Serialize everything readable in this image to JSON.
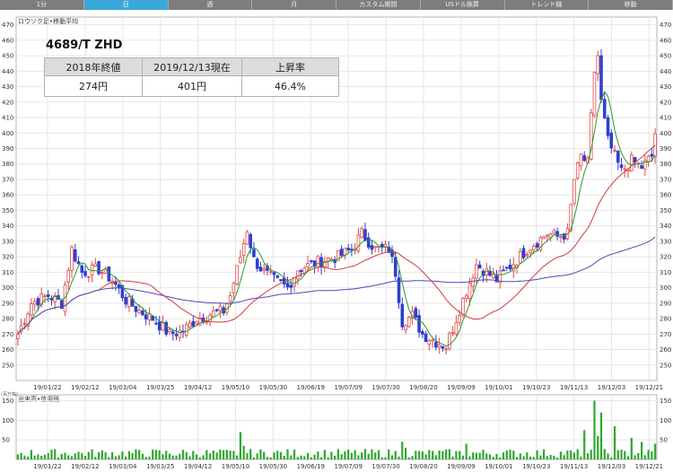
{
  "toolbar": {
    "tabs": [
      {
        "label": "1分",
        "active": false
      },
      {
        "label": "日",
        "active": true
      },
      {
        "label": "週",
        "active": false
      },
      {
        "label": "月",
        "active": false
      },
      {
        "label": "カスタム期間",
        "active": false
      },
      {
        "label": "USドル換算",
        "active": false
      },
      {
        "label": "トレンド線",
        "active": false
      },
      {
        "label": "移動",
        "active": false
      }
    ],
    "active_color": "#39a8d8",
    "bar_color": "#7d7d7d"
  },
  "info": {
    "title": "4689/T ZHD",
    "headers": [
      "2018年終値",
      "2019/12/13現在",
      "上昇率"
    ],
    "values": [
      "274円",
      "401円",
      "46.4%"
    ]
  },
  "chart_data": {
    "type": "candlestick",
    "price_panel_label": "ロウソク足•移動平均",
    "volume_panel_label": "出来高•信用残",
    "volume_unit_label": "(百万株)",
    "price_ylim": [
      240,
      475
    ],
    "price_yticks": [
      250,
      260,
      270,
      280,
      290,
      300,
      310,
      320,
      330,
      340,
      350,
      360,
      370,
      380,
      390,
      400,
      410,
      420,
      430,
      440,
      450,
      460,
      470
    ],
    "price_ytick_labels": [
      "250",
      "260",
      "270",
      "280",
      "290",
      "300",
      "310",
      "320",
      "330",
      "340",
      "350",
      "360",
      "370",
      "380",
      "390",
      "400",
      "410",
      "420",
      "430",
      "440",
      "450",
      "460",
      "470"
    ],
    "volume_ylim": [
      0,
      165
    ],
    "volume_yticks": [
      50,
      100,
      150
    ],
    "date_labels": [
      "19/01/22",
      "19/02/12",
      "19/03/04",
      "19/03/25",
      "19/04/12",
      "19/05/10",
      "19/05/30",
      "19/06/19",
      "19/07/09",
      "19/07/30",
      "19/08/20",
      "19/09/09",
      "19/10/01",
      "19/10/23",
      "19/11/13",
      "19/12/03",
      "19/12/21"
    ],
    "anchors": [
      {
        "d": 0,
        "p": 270
      },
      {
        "d": 4,
        "p": 290
      },
      {
        "d": 9,
        "p": 295
      },
      {
        "d": 13,
        "p": 290
      },
      {
        "d": 16,
        "p": 325
      },
      {
        "d": 19,
        "p": 310
      },
      {
        "d": 24,
        "p": 312
      },
      {
        "d": 28,
        "p": 305
      },
      {
        "d": 32,
        "p": 292
      },
      {
        "d": 36,
        "p": 285
      },
      {
        "d": 40,
        "p": 280
      },
      {
        "d": 45,
        "p": 270
      },
      {
        "d": 49,
        "p": 272
      },
      {
        "d": 53,
        "p": 280
      },
      {
        "d": 57,
        "p": 283
      },
      {
        "d": 61,
        "p": 285
      },
      {
        "d": 63,
        "p": 295
      },
      {
        "d": 66,
        "p": 320
      },
      {
        "d": 68,
        "p": 338
      },
      {
        "d": 70,
        "p": 318
      },
      {
        "d": 73,
        "p": 310
      },
      {
        "d": 76,
        "p": 305
      },
      {
        "d": 80,
        "p": 300
      },
      {
        "d": 83,
        "p": 312
      },
      {
        "d": 87,
        "p": 315
      },
      {
        "d": 91,
        "p": 318
      },
      {
        "d": 95,
        "p": 320
      },
      {
        "d": 99,
        "p": 325
      },
      {
        "d": 102,
        "p": 335
      },
      {
        "d": 106,
        "p": 325
      },
      {
        "d": 110,
        "p": 325
      },
      {
        "d": 112,
        "p": 310
      },
      {
        "d": 114,
        "p": 278
      },
      {
        "d": 117,
        "p": 282
      },
      {
        "d": 120,
        "p": 270
      },
      {
        "d": 124,
        "p": 265
      },
      {
        "d": 127,
        "p": 262
      },
      {
        "d": 130,
        "p": 280
      },
      {
        "d": 133,
        "p": 298
      },
      {
        "d": 136,
        "p": 315
      },
      {
        "d": 139,
        "p": 310
      },
      {
        "d": 142,
        "p": 305
      },
      {
        "d": 145,
        "p": 312
      },
      {
        "d": 148,
        "p": 318
      },
      {
        "d": 151,
        "p": 325
      },
      {
        "d": 154,
        "p": 330
      },
      {
        "d": 157,
        "p": 335
      },
      {
        "d": 160,
        "p": 333
      },
      {
        "d": 163,
        "p": 335
      },
      {
        "d": 165,
        "p": 370
      },
      {
        "d": 167,
        "p": 385
      },
      {
        "d": 169,
        "p": 380
      },
      {
        "d": 171,
        "p": 440
      },
      {
        "d": 172,
        "p": 450
      },
      {
        "d": 173,
        "p": 420
      },
      {
        "d": 175,
        "p": 395
      },
      {
        "d": 177,
        "p": 385
      },
      {
        "d": 179,
        "p": 375
      },
      {
        "d": 182,
        "p": 382
      },
      {
        "d": 185,
        "p": 378
      },
      {
        "d": 188,
        "p": 385
      },
      {
        "d": 189,
        "p": 400
      }
    ],
    "ma_short_color": "#2a9a2a",
    "ma_mid_color": "#d03c3c",
    "ma_long_color": "#4b4bb8",
    "up_color": "#e24848",
    "down_color": "#2f3fd0",
    "volume_color": "#2fa82f"
  }
}
